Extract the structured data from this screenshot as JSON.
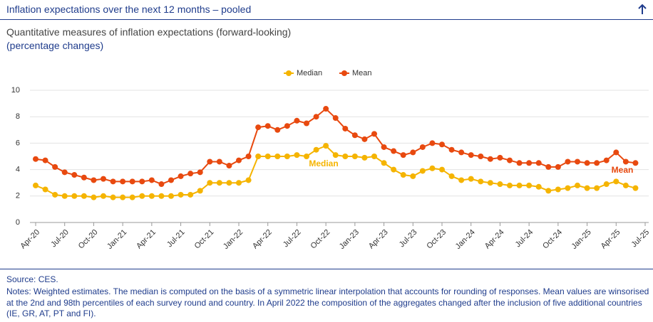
{
  "header": {
    "title": "Inflation expectations over the next 12 months – pooled"
  },
  "chart_data": {
    "type": "line",
    "title": "Quantitative measures of inflation expectations (forward-looking)",
    "subtitle": "(percentage changes)",
    "categories": [
      "Apr-20",
      null,
      null,
      "Jul-20",
      null,
      null,
      "Oct-20",
      null,
      null,
      "Jan-21",
      null,
      null,
      "Apr-21",
      null,
      null,
      "Jul-21",
      null,
      null,
      "Oct-21",
      null,
      null,
      "Jan-22",
      null,
      null,
      "Apr-22",
      null,
      null,
      "Jul-22",
      null,
      null,
      "Oct-22",
      null,
      null,
      "Jan-23",
      null,
      null,
      "Apr-23",
      null,
      null,
      "Jul-23",
      null,
      null,
      "Oct-23",
      null,
      null,
      "Jan-24",
      null,
      null,
      "Apr-24",
      null,
      null,
      "Jul-24",
      null,
      null,
      "Oct-24",
      null,
      null,
      "Jan-25",
      null,
      null,
      "Apr-25",
      null,
      null,
      "Jul-25"
    ],
    "series": [
      {
        "name": "Median",
        "color": "#f5b400",
        "values": [
          2.8,
          2.5,
          2.1,
          2.0,
          2.0,
          2.0,
          1.9,
          2.0,
          1.9,
          1.9,
          1.9,
          2.0,
          2.0,
          2.0,
          2.0,
          2.1,
          2.1,
          2.4,
          3.0,
          3.0,
          3.0,
          3.0,
          3.2,
          5.0,
          5.0,
          5.0,
          5.0,
          5.1,
          5.0,
          5.5,
          5.8,
          5.1,
          5.0,
          5.0,
          4.9,
          5.0,
          4.5,
          4.0,
          3.6,
          3.5,
          3.9,
          4.1,
          4.0,
          3.5,
          3.2,
          3.3,
          3.1,
          3.0,
          2.9,
          2.8,
          2.8,
          2.8,
          2.7,
          2.4,
          2.5,
          2.6,
          2.8,
          2.6,
          2.6,
          2.9,
          3.1,
          2.8,
          2.6,
          null
        ]
      },
      {
        "name": "Mean",
        "color": "#e8490f",
        "values": [
          4.8,
          4.7,
          4.2,
          3.8,
          3.6,
          3.4,
          3.2,
          3.3,
          3.1,
          3.1,
          3.1,
          3.1,
          3.2,
          2.9,
          3.2,
          3.5,
          3.7,
          3.8,
          4.6,
          4.6,
          4.3,
          4.7,
          5.0,
          7.2,
          7.3,
          7.0,
          7.3,
          7.7,
          7.5,
          8.0,
          8.6,
          7.9,
          7.1,
          6.6,
          6.3,
          6.7,
          5.7,
          5.4,
          5.1,
          5.3,
          5.7,
          6.0,
          5.9,
          5.5,
          5.3,
          5.1,
          5.0,
          4.8,
          4.9,
          4.7,
          4.5,
          4.5,
          4.5,
          4.2,
          4.2,
          4.6,
          4.6,
          4.5,
          4.5,
          4.7,
          5.3,
          4.6,
          4.5,
          null
        ]
      }
    ],
    "annotations": [
      "Median",
      "Mean"
    ],
    "ylim": [
      0,
      10
    ],
    "yticks": [
      0,
      2,
      4,
      6,
      8,
      10
    ],
    "grid": true,
    "legend": "top"
  },
  "source": "Source: CES.",
  "notes": "Notes: Weighted estimates. The median is computed on the basis of a symmetric linear interpolation that accounts for rounding of responses. Mean values are winsorised at the 2nd and 98th percentiles of each survey round and country. In April 2022 the composition of the aggregates changed after the inclusion of five additional countries (IE, GR, AT, PT and FI)."
}
